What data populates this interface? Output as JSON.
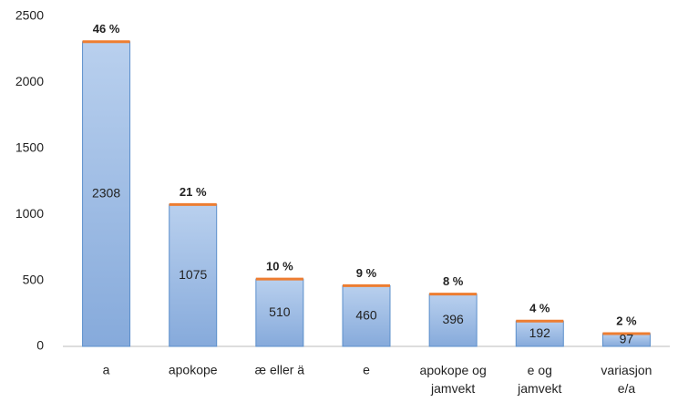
{
  "chart_data": {
    "type": "bar",
    "categories": [
      "a",
      "apokope",
      "æ eller ä",
      "e",
      "apokope og jamvekt",
      "e og jamvekt",
      "variasjon e/a"
    ],
    "values": [
      2308,
      1075,
      510,
      460,
      396,
      192,
      97
    ],
    "percent_labels": [
      "46 %",
      "21 %",
      "10 %",
      "9 %",
      "8 %",
      "4 %",
      "2 %"
    ],
    "color": "#a7c2e6",
    "top_color": "#ed7d31",
    "ylim": [
      0,
      2500
    ],
    "yticks": [
      0,
      500,
      1000,
      1500,
      2000,
      2500
    ],
    "grid": false
  }
}
